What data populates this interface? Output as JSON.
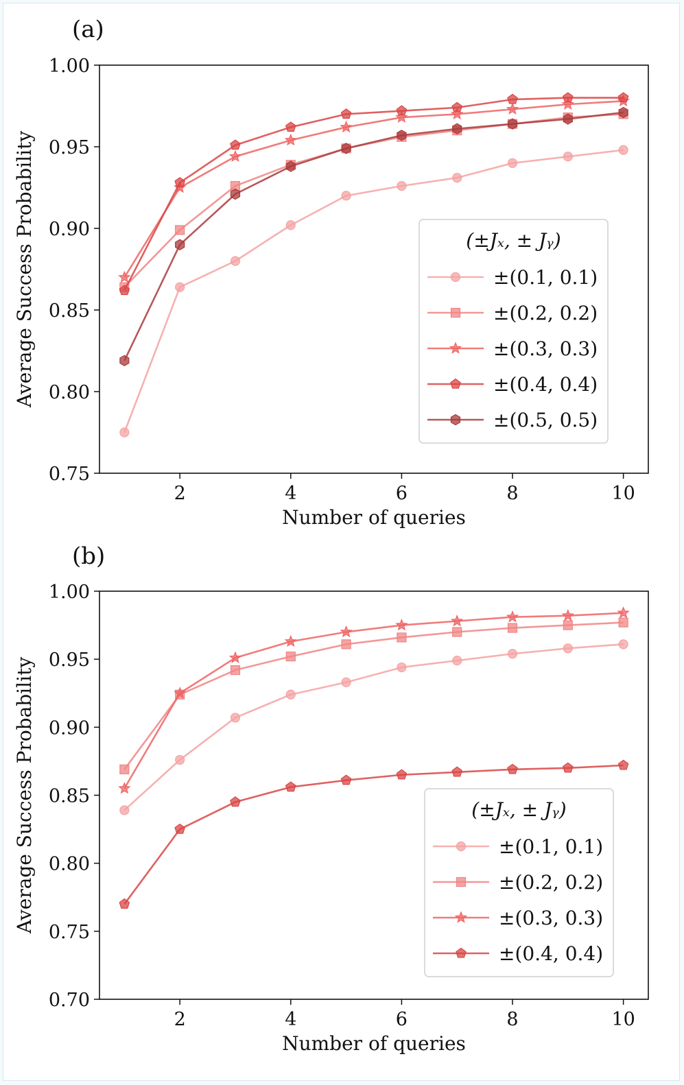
{
  "figure": {
    "panel_a_label": "(a)",
    "panel_b_label": "(b)"
  },
  "chart_data": [
    {
      "type": "line",
      "panel": "(a)",
      "xlabel": "Number of queries",
      "ylabel": "Average Success Probability",
      "xlim": [
        0.55,
        10.45
      ],
      "ylim": [
        0.75,
        1.0
      ],
      "xticks": [
        2,
        4,
        6,
        8,
        10
      ],
      "xtick_labels": [
        "2",
        "4",
        "6",
        "8",
        "10"
      ],
      "yticks": [
        0.75,
        0.8,
        0.85,
        0.9,
        0.95,
        1.0
      ],
      "ytick_labels": [
        "0.75",
        "0.80",
        "0.85",
        "0.90",
        "0.95",
        "1.00"
      ],
      "legend_title": "(±Jₓ, ± Jᵧ)",
      "legend_position": "center-right",
      "x": [
        1,
        2,
        3,
        4,
        5,
        6,
        7,
        8,
        9,
        10
      ],
      "series": [
        {
          "name": "±(0.1, 0.1)",
          "marker": "circle",
          "color": "#f4a3a3",
          "values": [
            0.775,
            0.864,
            0.88,
            0.902,
            0.92,
            0.926,
            0.931,
            0.94,
            0.944,
            0.948
          ]
        },
        {
          "name": "±(0.2, 0.2)",
          "marker": "square",
          "color": "#f08585",
          "values": [
            0.864,
            0.899,
            0.926,
            0.939,
            0.949,
            0.956,
            0.96,
            0.964,
            0.968,
            0.97
          ]
        },
        {
          "name": "±(0.3, 0.3)",
          "marker": "star",
          "color": "#ef6464",
          "values": [
            0.87,
            0.925,
            0.944,
            0.954,
            0.962,
            0.968,
            0.97,
            0.973,
            0.976,
            0.978
          ]
        },
        {
          "name": "±(0.4, 0.4)",
          "marker": "pentagon",
          "color": "#d94545",
          "values": [
            0.862,
            0.928,
            0.951,
            0.962,
            0.97,
            0.972,
            0.974,
            0.979,
            0.98,
            0.98
          ]
        },
        {
          "name": "±(0.5, 0.5)",
          "marker": "hexagon",
          "color": "#a93b3b",
          "values": [
            0.819,
            0.89,
            0.921,
            0.938,
            0.949,
            0.957,
            0.961,
            0.964,
            0.967,
            0.971
          ]
        }
      ]
    },
    {
      "type": "line",
      "panel": "(b)",
      "xlabel": "Number of queries",
      "ylabel": "Average Success Probability",
      "xlim": [
        0.55,
        10.45
      ],
      "ylim": [
        0.7,
        1.0
      ],
      "xticks": [
        2,
        4,
        6,
        8,
        10
      ],
      "xtick_labels": [
        "2",
        "4",
        "6",
        "8",
        "10"
      ],
      "yticks": [
        0.7,
        0.75,
        0.8,
        0.85,
        0.9,
        0.95,
        1.0
      ],
      "ytick_labels": [
        "0.70",
        "0.75",
        "0.80",
        "0.85",
        "0.90",
        "0.95",
        "1.00"
      ],
      "legend_title": "(±Jₓ, ± Jᵧ)",
      "legend_position": "lower-right",
      "x": [
        1,
        2,
        3,
        4,
        5,
        6,
        7,
        8,
        9,
        10
      ],
      "series": [
        {
          "name": "±(0.1, 0.1)",
          "marker": "circle",
          "color": "#f4a3a3",
          "values": [
            0.839,
            0.876,
            0.907,
            0.924,
            0.933,
            0.944,
            0.949,
            0.954,
            0.958,
            0.961
          ]
        },
        {
          "name": "±(0.2, 0.2)",
          "marker": "square",
          "color": "#f08585",
          "values": [
            0.869,
            0.924,
            0.942,
            0.952,
            0.961,
            0.966,
            0.97,
            0.973,
            0.975,
            0.977
          ]
        },
        {
          "name": "±(0.3, 0.3)",
          "marker": "star",
          "color": "#ef6464",
          "values": [
            0.855,
            0.925,
            0.951,
            0.963,
            0.97,
            0.975,
            0.978,
            0.981,
            0.982,
            0.984
          ]
        },
        {
          "name": "±(0.4, 0.4)",
          "marker": "pentagon",
          "color": "#d94545",
          "values": [
            0.77,
            0.825,
            0.845,
            0.856,
            0.861,
            0.865,
            0.867,
            0.869,
            0.87,
            0.872
          ]
        }
      ]
    }
  ]
}
